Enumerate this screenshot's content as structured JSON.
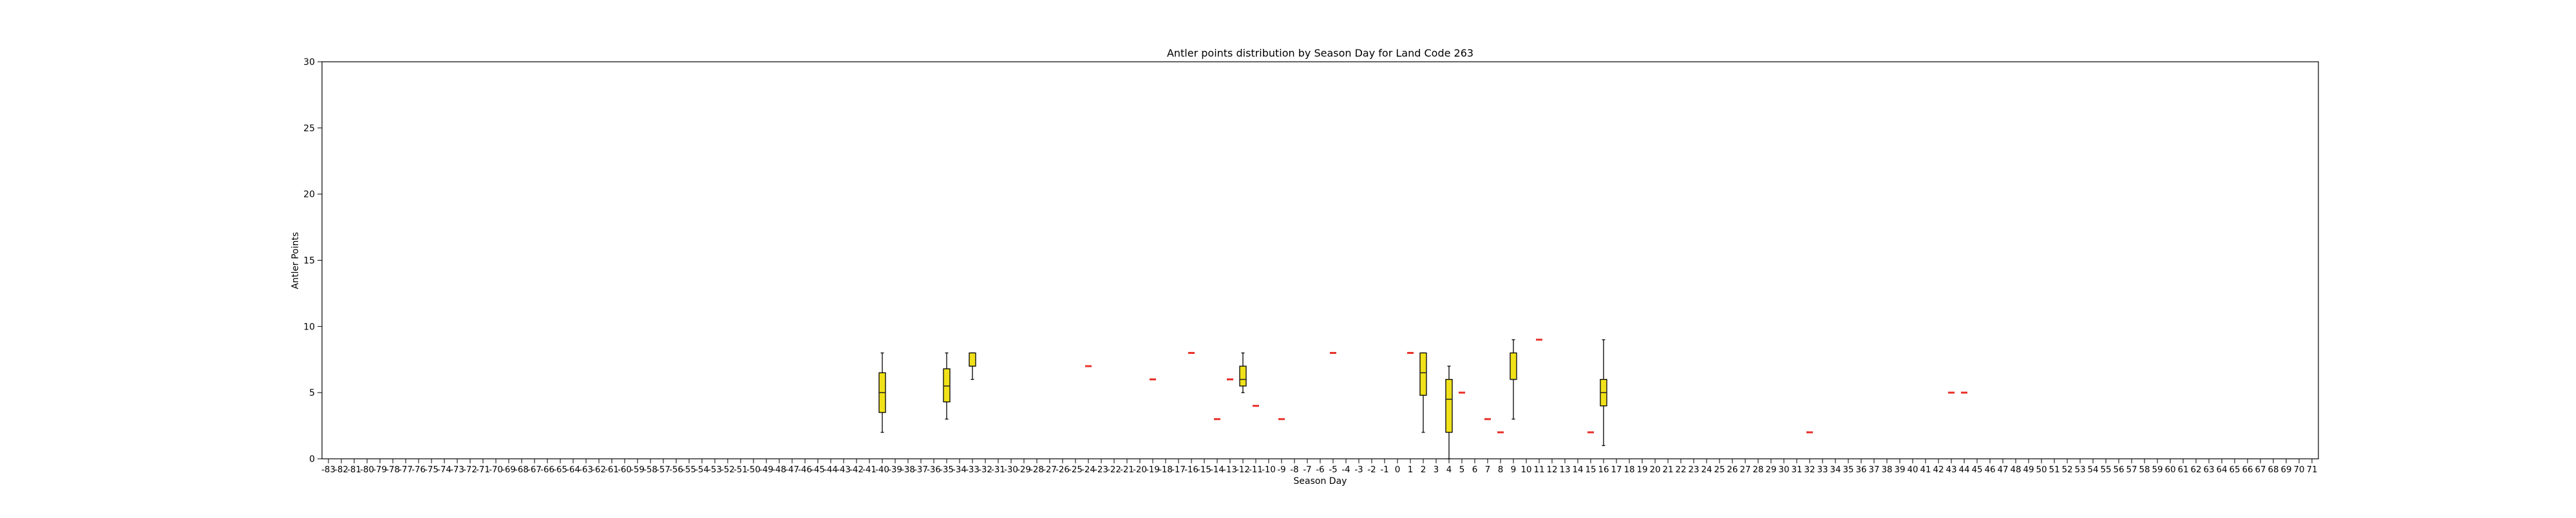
{
  "chart_data": {
    "type": "box",
    "title": "Antler points distribution by Season Day for Land Code 263",
    "xlabel": "Season Day",
    "ylabel": "Antler Points",
    "ylim": [
      0,
      30
    ],
    "yticks": [
      0,
      5,
      10,
      15,
      20,
      25,
      30
    ],
    "grid": false,
    "x_range": [
      -83,
      71
    ],
    "colors": {
      "box_fill": "#f0e11a",
      "median_single": "#e8312a",
      "median": "#222222",
      "axis": "#000000"
    },
    "boxes": [
      {
        "day": -40,
        "whisker_low": 2,
        "q1": 3.5,
        "median": 5,
        "q3": 6.5,
        "whisker_high": 8
      },
      {
        "day": -35,
        "whisker_low": 3,
        "q1": 4.3,
        "median": 5.5,
        "q3": 6.8,
        "whisker_high": 8
      },
      {
        "day": -33,
        "whisker_low": 6,
        "q1": 7,
        "median": 7,
        "q3": 8,
        "whisker_high": 8
      },
      {
        "day": -24,
        "whisker_low": 7,
        "q1": 7,
        "median": 7,
        "q3": 7,
        "whisker_high": 7
      },
      {
        "day": -19,
        "whisker_low": 6,
        "q1": 6,
        "median": 6,
        "q3": 6,
        "whisker_high": 6
      },
      {
        "day": -16,
        "whisker_low": 8,
        "q1": 8,
        "median": 8,
        "q3": 8,
        "whisker_high": 8
      },
      {
        "day": -14,
        "whisker_low": 3,
        "q1": 3,
        "median": 3,
        "q3": 3,
        "whisker_high": 3
      },
      {
        "day": -13,
        "whisker_low": 6,
        "q1": 6,
        "median": 6,
        "q3": 6,
        "whisker_high": 6
      },
      {
        "day": -12,
        "whisker_low": 5,
        "q1": 5.5,
        "median": 6,
        "q3": 7,
        "whisker_high": 8
      },
      {
        "day": -11,
        "whisker_low": 4,
        "q1": 4,
        "median": 4,
        "q3": 4,
        "whisker_high": 4
      },
      {
        "day": -9,
        "whisker_low": 3,
        "q1": 3,
        "median": 3,
        "q3": 3,
        "whisker_high": 3
      },
      {
        "day": -5,
        "whisker_low": 8,
        "q1": 8,
        "median": 8,
        "q3": 8,
        "whisker_high": 8
      },
      {
        "day": 1,
        "whisker_low": 8,
        "q1": 8,
        "median": 8,
        "q3": 8,
        "whisker_high": 8
      },
      {
        "day": 2,
        "whisker_low": 2,
        "q1": 4.8,
        "median": 6.5,
        "q3": 8,
        "whisker_high": 8
      },
      {
        "day": 4,
        "whisker_low": 0,
        "q1": 2,
        "median": 4.5,
        "q3": 6,
        "whisker_high": 7
      },
      {
        "day": 5,
        "whisker_low": 5,
        "q1": 5,
        "median": 5,
        "q3": 5,
        "whisker_high": 5
      },
      {
        "day": 7,
        "whisker_low": 3,
        "q1": 3,
        "median": 3,
        "q3": 3,
        "whisker_high": 3
      },
      {
        "day": 8,
        "whisker_low": 2,
        "q1": 2,
        "median": 2,
        "q3": 2,
        "whisker_high": 2
      },
      {
        "day": 9,
        "whisker_low": 3,
        "q1": 6,
        "median": 6,
        "q3": 8,
        "whisker_high": 9
      },
      {
        "day": 11,
        "whisker_low": 9,
        "q1": 9,
        "median": 9,
        "q3": 9,
        "whisker_high": 9
      },
      {
        "day": 15,
        "whisker_low": 2,
        "q1": 2,
        "median": 2,
        "q3": 2,
        "whisker_high": 2
      },
      {
        "day": 16,
        "whisker_low": 1,
        "q1": 4,
        "median": 5,
        "q3": 6,
        "whisker_high": 9
      },
      {
        "day": 32,
        "whisker_low": 2,
        "q1": 2,
        "median": 2,
        "q3": 2,
        "whisker_high": 2
      },
      {
        "day": 43,
        "whisker_low": 5,
        "q1": 5,
        "median": 5,
        "q3": 5,
        "whisker_high": 5
      },
      {
        "day": 44,
        "whisker_low": 5,
        "q1": 5,
        "median": 5,
        "q3": 5,
        "whisker_high": 5
      }
    ]
  }
}
